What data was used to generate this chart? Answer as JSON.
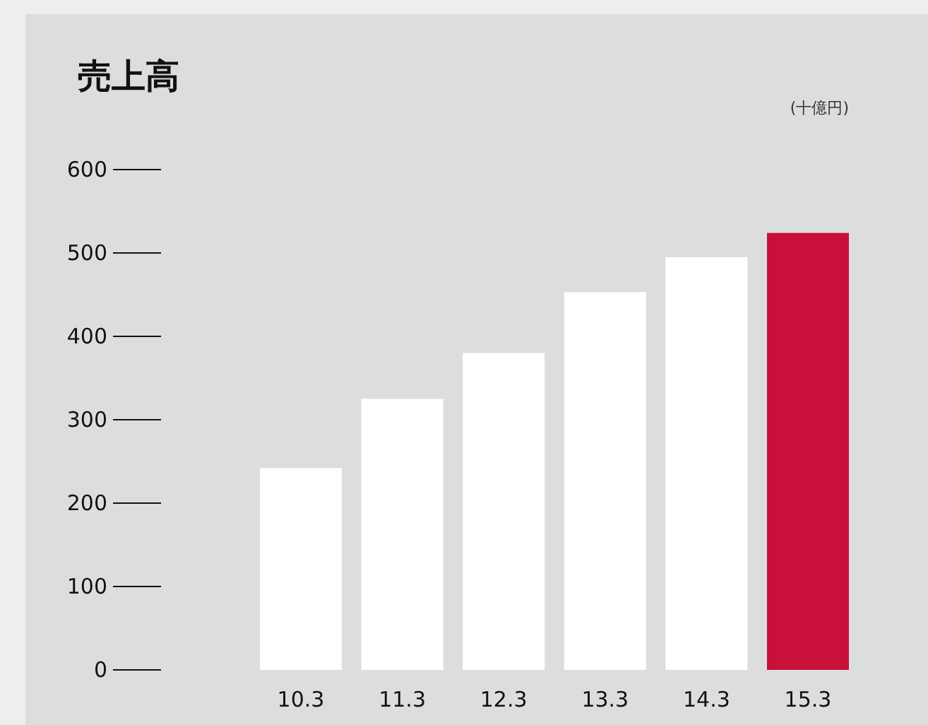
{
  "chart_data": {
    "type": "bar",
    "title": "売上高",
    "ylabel": "(十億円)",
    "categories": [
      "10.3",
      "11.3",
      "12.3",
      "13.3",
      "14.3",
      "15.3"
    ],
    "values": [
      242,
      325,
      380,
      453,
      495,
      524
    ],
    "colors": [
      "#ffffff",
      "#ffffff",
      "#ffffff",
      "#ffffff",
      "#ffffff",
      "#c8103a"
    ],
    "ylim": [
      0,
      600
    ],
    "yticks": [
      0,
      100,
      200,
      300,
      400,
      500,
      600
    ]
  }
}
